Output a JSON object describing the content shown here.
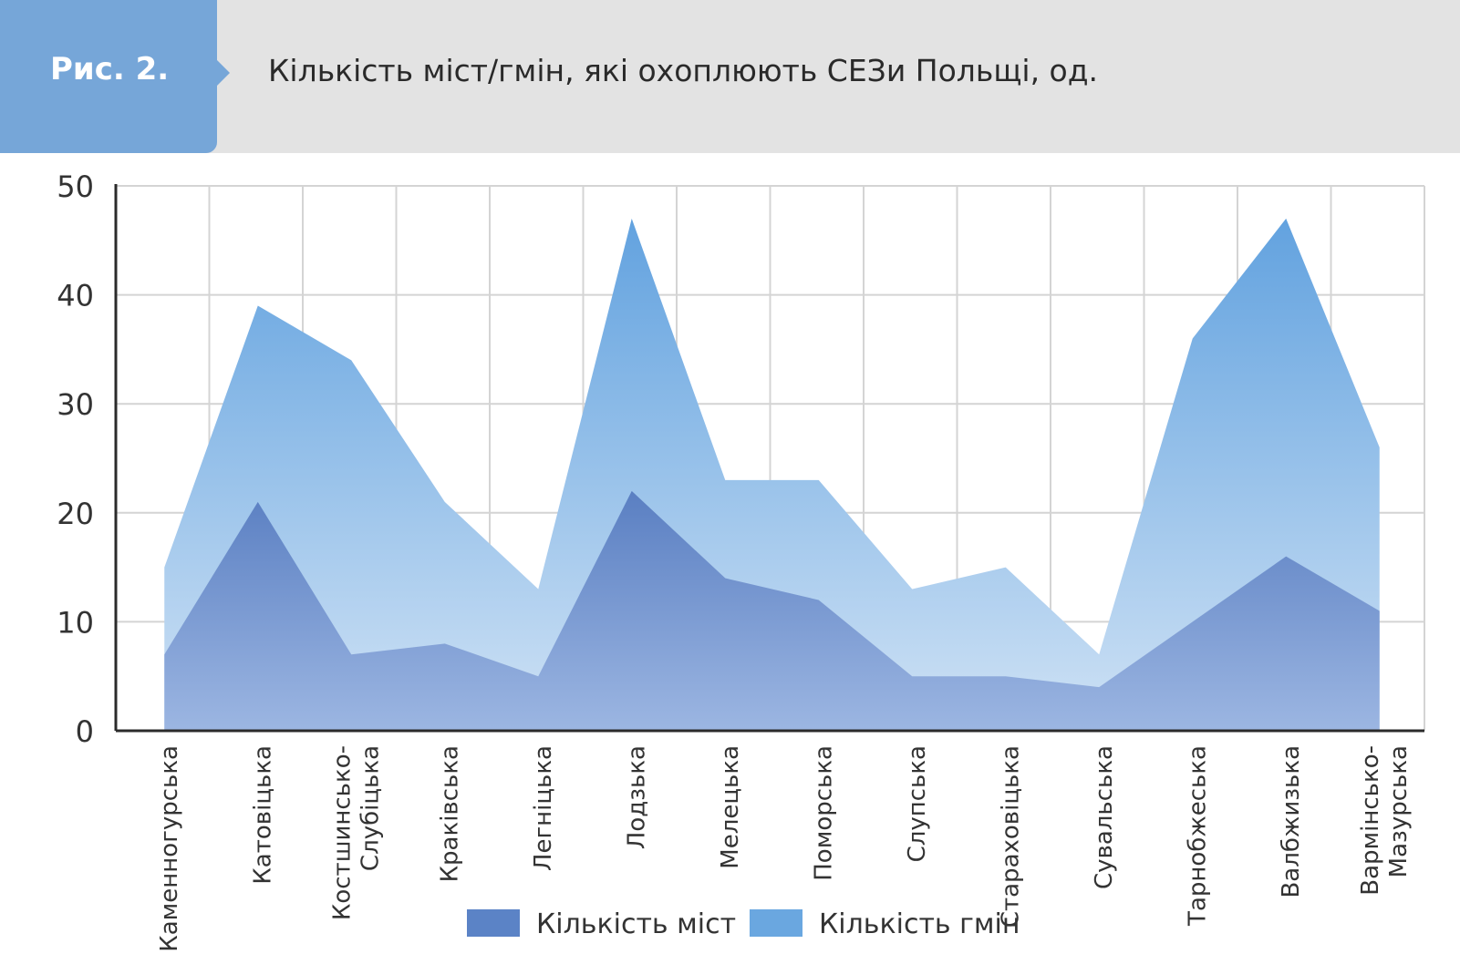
{
  "header": {
    "figure_label": "Рис. 2.",
    "title": "Кількість міст/гмін, які охоплюють СЕЗи Польщі, од."
  },
  "chart_data": {
    "type": "area",
    "title": "Кількість міст/гмін, які охоплюють СЕЗи Польщі, од.",
    "categories": [
      "Каменногурська",
      "Катовіцька",
      "Костшинсько-Слубіцька",
      "Краківська",
      "Легніцька",
      "Лодзька",
      "Мелецька",
      "Поморська",
      "Слупська",
      "Стараховіцька",
      "Сувальська",
      "Тарнобжеська",
      "Валбжизька",
      "Вармінсько-Мазурська"
    ],
    "category_lines": [
      [
        "Каменногурська"
      ],
      [
        "Катовіцька"
      ],
      [
        "Костшинсько-",
        "Слубіцька"
      ],
      [
        "Краківська"
      ],
      [
        "Легніцька"
      ],
      [
        "Лодзька"
      ],
      [
        "Мелецька"
      ],
      [
        "Поморська"
      ],
      [
        "Слупська"
      ],
      [
        "Стараховіцька"
      ],
      [
        "Сувальська"
      ],
      [
        "Тарнобжеська"
      ],
      [
        "Валбжизька"
      ],
      [
        "Вармінсько-",
        "Мазурська"
      ]
    ],
    "series": [
      {
        "name": "Кількість гмін",
        "color": "#6aa7e0",
        "values": [
          15,
          39,
          34,
          21,
          13,
          47,
          23,
          23,
          13,
          15,
          7,
          36,
          47,
          26
        ]
      },
      {
        "name": "Кількість міст",
        "color": "#5b83c6",
        "values": [
          7,
          21,
          7,
          8,
          5,
          22,
          14,
          12,
          5,
          5,
          4,
          10,
          16,
          11
        ]
      }
    ],
    "ylim": [
      0,
      50
    ],
    "yticks": [
      0,
      10,
      20,
      30,
      40,
      50
    ],
    "grid": true,
    "legend_position": "bottom"
  }
}
